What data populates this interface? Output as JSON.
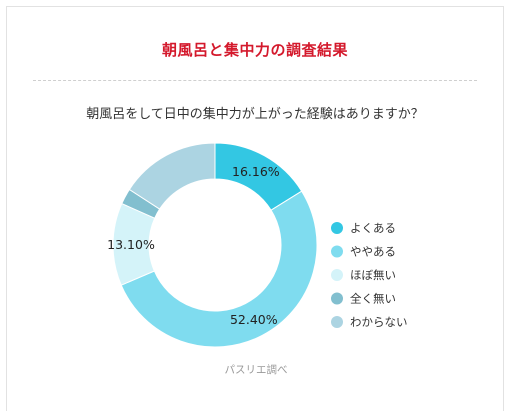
{
  "title": "朝風呂と集中力の調査結果",
  "question": "朝風呂をして日中の集中力が上がった経験はありますか？",
  "source": "パスリエ調べ",
  "chart_data": {
    "type": "pie",
    "style": "donut",
    "legend_position": "right",
    "slices": [
      {
        "label": "よくある",
        "value": 16.16,
        "display": "16.16%",
        "color": "#33c7e3"
      },
      {
        "label": "ややある",
        "value": 52.4,
        "display": "52.40%",
        "color": "#7fdcef"
      },
      {
        "label": "ほぼ無い",
        "value": 13.1,
        "display": "13.10%",
        "color": "#d4f3f9"
      },
      {
        "label": "全く無い",
        "value": 2.5,
        "display": "",
        "color": "#82bfcf"
      },
      {
        "label": "わからない",
        "value": 15.84,
        "display": "",
        "color": "#acd4e2"
      }
    ]
  }
}
